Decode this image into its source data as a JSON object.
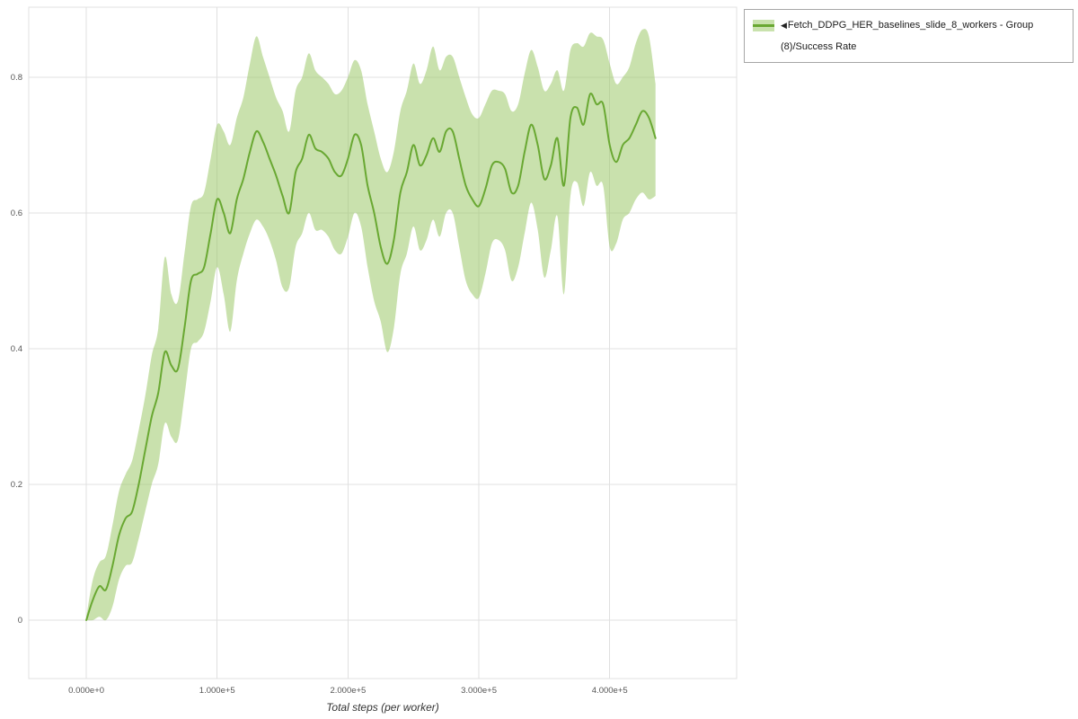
{
  "legend": {
    "arrow_icon": "◀",
    "label": "Fetch_DDPG_HER_baselines_slide_8_workers - Group (8)/Success Rate",
    "border_color": "#a6a6a6"
  },
  "chart_data": {
    "type": "line",
    "title": "",
    "xlabel": "Total steps (per worker)",
    "ylabel": "",
    "grid": true,
    "grid_color": "#e0e0e0",
    "legend_position": "top-right",
    "xlim": [
      -44000,
      497000
    ],
    "ylim": [
      -0.086,
      0.903
    ],
    "x_ticks": [
      0,
      100000,
      200000,
      300000,
      400000
    ],
    "x_tick_labels": [
      "0.000e+0",
      "1.000e+5",
      "2.000e+5",
      "3.000e+5",
      "4.000e+5"
    ],
    "y_ticks": [
      0,
      0.2,
      0.4,
      0.6,
      0.8
    ],
    "y_tick_labels": [
      "0",
      "0.2",
      "0.4",
      "0.6",
      "0.8"
    ],
    "series": [
      {
        "name": "Fetch_DDPG_HER_baselines_slide_8_workers - Group (8)/Success Rate",
        "color": "#69a832",
        "band_color": "#9cc96a",
        "band_opacity": 0.55,
        "band_color_light": "#c9e2ad",
        "x": [
          0,
          5000,
          10000,
          15000,
          20000,
          25000,
          30000,
          35000,
          40000,
          45000,
          50000,
          55000,
          60000,
          65000,
          70000,
          75000,
          80000,
          85000,
          90000,
          95000,
          100000,
          105000,
          110000,
          115000,
          120000,
          125000,
          130000,
          135000,
          140000,
          145000,
          150000,
          155000,
          160000,
          165000,
          170000,
          175000,
          180000,
          185000,
          190000,
          195000,
          200000,
          205000,
          210000,
          215000,
          220000,
          225000,
          230000,
          235000,
          240000,
          245000,
          250000,
          255000,
          260000,
          265000,
          270000,
          275000,
          280000,
          285000,
          290000,
          295000,
          300000,
          305000,
          310000,
          315000,
          320000,
          325000,
          330000,
          335000,
          340000,
          345000,
          350000,
          355000,
          360000,
          365000,
          370000,
          375000,
          380000,
          385000,
          390000,
          395000,
          400000,
          405000,
          410000,
          415000,
          420000,
          425000,
          430000,
          435000
        ],
        "y": [
          0.0,
          0.03,
          0.05,
          0.045,
          0.08,
          0.125,
          0.15,
          0.16,
          0.2,
          0.25,
          0.3,
          0.335,
          0.395,
          0.375,
          0.37,
          0.43,
          0.5,
          0.51,
          0.52,
          0.57,
          0.62,
          0.6,
          0.57,
          0.62,
          0.65,
          0.69,
          0.72,
          0.705,
          0.68,
          0.655,
          0.625,
          0.6,
          0.66,
          0.68,
          0.715,
          0.695,
          0.69,
          0.68,
          0.66,
          0.655,
          0.68,
          0.715,
          0.7,
          0.64,
          0.6,
          0.55,
          0.525,
          0.56,
          0.63,
          0.66,
          0.7,
          0.67,
          0.685,
          0.71,
          0.69,
          0.72,
          0.72,
          0.68,
          0.64,
          0.62,
          0.61,
          0.635,
          0.67,
          0.675,
          0.665,
          0.63,
          0.64,
          0.69,
          0.73,
          0.7,
          0.65,
          0.67,
          0.71,
          0.64,
          0.74,
          0.755,
          0.73,
          0.775,
          0.76,
          0.76,
          0.7,
          0.675,
          0.7,
          0.71,
          0.73,
          0.75,
          0.74,
          0.71
        ],
        "band_lower": [
          0.0,
          0.0,
          0.005,
          0.0,
          0.02,
          0.06,
          0.08,
          0.085,
          0.12,
          0.16,
          0.2,
          0.23,
          0.29,
          0.27,
          0.265,
          0.33,
          0.4,
          0.41,
          0.425,
          0.47,
          0.52,
          0.48,
          0.425,
          0.5,
          0.54,
          0.57,
          0.59,
          0.58,
          0.56,
          0.53,
          0.49,
          0.49,
          0.55,
          0.57,
          0.6,
          0.575,
          0.575,
          0.565,
          0.545,
          0.54,
          0.565,
          0.6,
          0.58,
          0.52,
          0.47,
          0.44,
          0.395,
          0.43,
          0.51,
          0.54,
          0.58,
          0.545,
          0.56,
          0.59,
          0.565,
          0.6,
          0.6,
          0.55,
          0.5,
          0.48,
          0.475,
          0.51,
          0.555,
          0.56,
          0.545,
          0.5,
          0.52,
          0.57,
          0.615,
          0.575,
          0.505,
          0.545,
          0.595,
          0.48,
          0.625,
          0.645,
          0.61,
          0.66,
          0.64,
          0.64,
          0.55,
          0.555,
          0.59,
          0.6,
          0.62,
          0.63,
          0.62,
          0.625
        ],
        "band_upper": [
          0.005,
          0.06,
          0.085,
          0.095,
          0.14,
          0.19,
          0.215,
          0.235,
          0.28,
          0.33,
          0.39,
          0.43,
          0.535,
          0.48,
          0.47,
          0.54,
          0.61,
          0.62,
          0.63,
          0.68,
          0.73,
          0.72,
          0.7,
          0.74,
          0.77,
          0.82,
          0.86,
          0.83,
          0.8,
          0.77,
          0.75,
          0.72,
          0.78,
          0.8,
          0.835,
          0.81,
          0.8,
          0.79,
          0.775,
          0.78,
          0.8,
          0.825,
          0.81,
          0.76,
          0.72,
          0.68,
          0.66,
          0.69,
          0.75,
          0.78,
          0.82,
          0.79,
          0.81,
          0.845,
          0.81,
          0.83,
          0.83,
          0.8,
          0.77,
          0.745,
          0.74,
          0.76,
          0.78,
          0.78,
          0.775,
          0.75,
          0.76,
          0.805,
          0.84,
          0.815,
          0.78,
          0.79,
          0.81,
          0.78,
          0.84,
          0.85,
          0.845,
          0.865,
          0.86,
          0.855,
          0.82,
          0.79,
          0.8,
          0.815,
          0.85,
          0.87,
          0.86,
          0.79
        ]
      }
    ]
  }
}
